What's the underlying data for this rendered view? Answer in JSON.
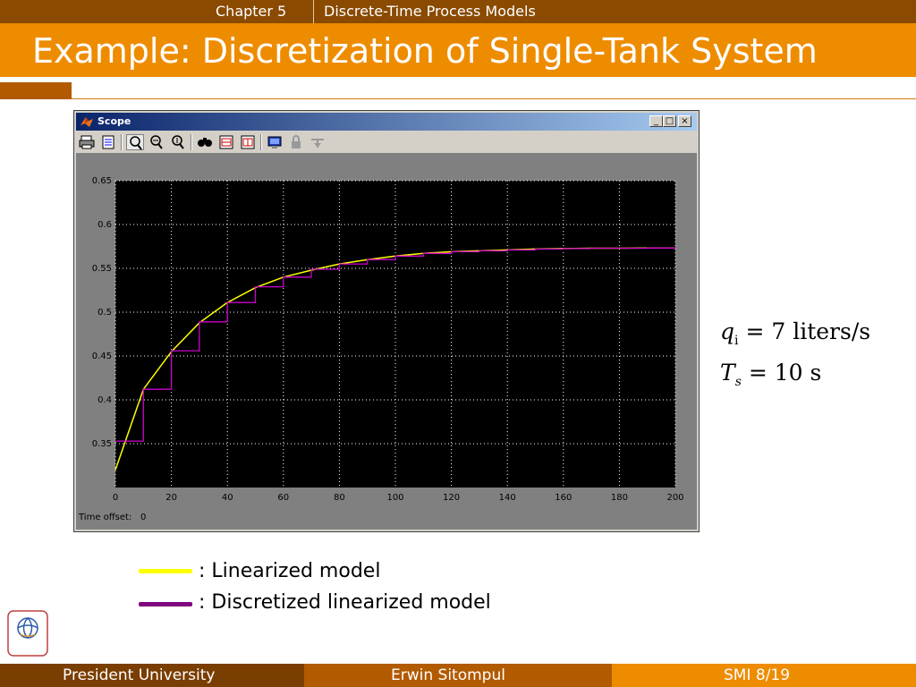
{
  "header": {
    "chapter": "Chapter 5",
    "chapter_title": "Discrete-Time Process Models",
    "slide_title": "Example: Discretization of Single-Tank System"
  },
  "scope_window": {
    "title": "Scope",
    "buttons": {
      "minimize": "_",
      "maximize": "□",
      "close": "×"
    },
    "toolbar_icons": [
      "print-icon",
      "parameters-icon",
      "zoom-icon",
      "zoom-x-icon",
      "zoom-y-icon",
      "autoscale-icon",
      "save-axes-icon",
      "restore-axes-icon",
      "floating-scope-icon",
      "lock-icon",
      "signal-selection-icon"
    ],
    "time_offset_label": "Time offset:",
    "time_offset_value": "0"
  },
  "chart_data": {
    "type": "line",
    "xlim": [
      0,
      200
    ],
    "ylim": [
      0.3,
      0.65
    ],
    "x_ticks": [
      "0",
      "20",
      "40",
      "60",
      "80",
      "100",
      "120",
      "140",
      "160",
      "180",
      "200"
    ],
    "y_ticks": [
      "0.35",
      "0.4",
      "0.45",
      "0.5",
      "0.55",
      "0.6",
      "0.65"
    ],
    "grid": true,
    "background": "#000000",
    "series": [
      {
        "kind": "continuous",
        "color": "#ffff00",
        "x": [
          0,
          10,
          20,
          30,
          40,
          50,
          60,
          70,
          80,
          90,
          100,
          110,
          120,
          130,
          140,
          150,
          160,
          170,
          180,
          190,
          200
        ],
        "values": [
          0.32,
          0.412,
          0.455,
          0.488,
          0.511,
          0.528,
          0.54,
          0.548,
          0.555,
          0.56,
          0.564,
          0.567,
          0.569,
          0.57,
          0.571,
          0.572,
          0.5725,
          0.573,
          0.573,
          0.5732,
          0.5733
        ]
      },
      {
        "kind": "staircase",
        "color": "#cc00cc",
        "x": [
          0,
          10,
          20,
          30,
          40,
          50,
          60,
          70,
          80,
          90,
          100,
          110,
          120,
          130,
          140,
          150,
          160,
          170,
          180,
          190,
          200
        ],
        "values": [
          0.353,
          0.412,
          0.456,
          0.489,
          0.511,
          0.529,
          0.54,
          0.549,
          0.555,
          0.56,
          0.564,
          0.567,
          0.569,
          0.57,
          0.571,
          0.572,
          0.5725,
          0.573,
          0.573,
          0.5732,
          0.5733
        ]
      }
    ]
  },
  "equations": {
    "q_symbol": "q",
    "q_sub": "i",
    "q_rhs": "= 7  liters/s",
    "t_symbol": "T",
    "t_sub": "s",
    "t_rhs": "= 10  s"
  },
  "legend": [
    {
      "color": "#ffff00",
      "label": ": Linearized model"
    },
    {
      "color": "#800080",
      "label": ": Discretized linearized model"
    }
  ],
  "logo_text": "PRESIDENT UNIVERSITY",
  "footer": {
    "left": "President University",
    "center": "Erwin Sitompul",
    "right": "SMI 8/19"
  },
  "colors": {
    "dark_brown": "#8a4a00",
    "orange": "#ee8c00",
    "mid_brown": "#b25a00"
  }
}
